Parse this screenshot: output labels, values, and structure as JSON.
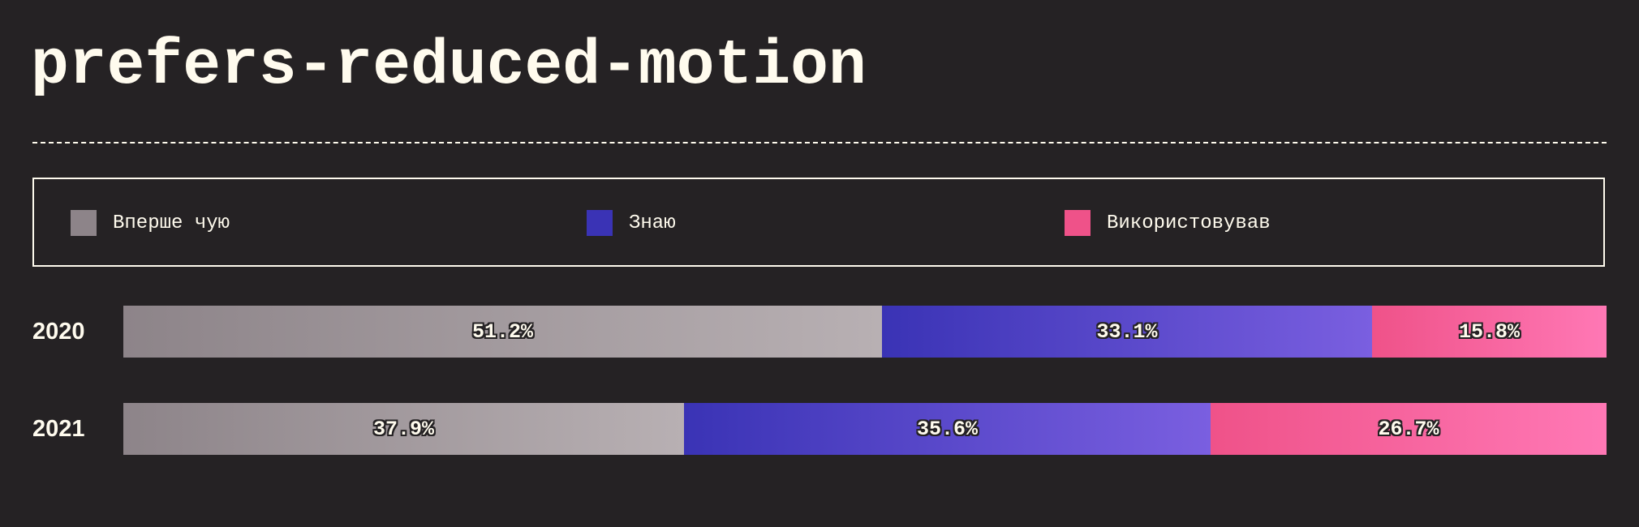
{
  "title": "prefers-reduced-motion",
  "legend": [
    {
      "label": "Вперше чую",
      "color": "#8d8489"
    },
    {
      "label": "Знаю",
      "color": "#3a33b5"
    },
    {
      "label": "Використовував",
      "color": "#ef5289"
    }
  ],
  "chart_data": {
    "type": "bar",
    "orientation": "horizontal",
    "stacked": true,
    "normalized": true,
    "categories": [
      "2020",
      "2021"
    ],
    "series": [
      {
        "name": "Вперше чую",
        "values": [
          51.2,
          37.9
        ],
        "labels": [
          "51.2%",
          "37.9%"
        ],
        "color_start": "#8d8489",
        "color_end": "#b8b0b3"
      },
      {
        "name": "Знаю",
        "values": [
          33.1,
          35.6
        ],
        "labels": [
          "33.1%",
          "35.6%"
        ],
        "color_start": "#3a33b5",
        "color_end": "#7a5fe0"
      },
      {
        "name": "Використовував",
        "values": [
          15.8,
          26.7
        ],
        "labels": [
          "15.8%",
          "26.7%"
        ],
        "color_start": "#ef5289",
        "color_end": "#ff78b5"
      }
    ],
    "legend_position": "top",
    "grid": false
  }
}
